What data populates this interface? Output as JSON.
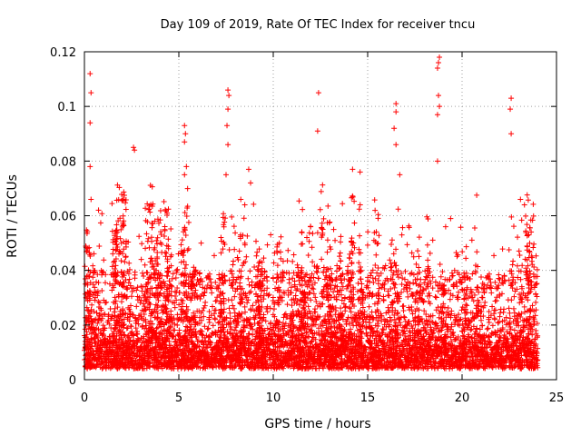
{
  "chart_data": {
    "type": "scatter",
    "title": "Day 109 of 2019, Rate Of TEC Index for receiver tncu",
    "xlabel": "GPS time / hours",
    "ylabel": "ROTI / TECUs",
    "xlim": [
      0,
      25
    ],
    "ylim": [
      0,
      0.12
    ],
    "x_ticks": [
      0,
      5,
      10,
      15,
      20,
      25
    ],
    "y_ticks": [
      0,
      0.02,
      0.04,
      0.06,
      0.08,
      0.1,
      0.12
    ],
    "x_tick_labels": [
      "0",
      "5",
      "10",
      "15",
      "20",
      "25"
    ],
    "y_tick_labels": [
      "0",
      "0.02",
      "0.04",
      "0.06",
      "0.08",
      "0.1",
      "0.12"
    ],
    "grid": true,
    "marker": "+",
    "series_color": "#ff0000",
    "density_profile": {
      "x_range": [
        0,
        24
      ],
      "baseline_band": [
        0.004,
        0.02
      ],
      "common_peak_range": [
        0.03,
        0.07
      ]
    },
    "highlight_points": [
      {
        "x": 0.3,
        "y": 0.112
      },
      {
        "x": 0.35,
        "y": 0.105
      },
      {
        "x": 0.3,
        "y": 0.094
      },
      {
        "x": 0.3,
        "y": 0.078
      },
      {
        "x": 0.35,
        "y": 0.066
      },
      {
        "x": 2.6,
        "y": 0.085
      },
      {
        "x": 2.65,
        "y": 0.084
      },
      {
        "x": 5.3,
        "y": 0.093
      },
      {
        "x": 5.35,
        "y": 0.09
      },
      {
        "x": 5.3,
        "y": 0.087
      },
      {
        "x": 5.4,
        "y": 0.078
      },
      {
        "x": 5.3,
        "y": 0.075
      },
      {
        "x": 7.6,
        "y": 0.106
      },
      {
        "x": 7.65,
        "y": 0.104
      },
      {
        "x": 7.6,
        "y": 0.099
      },
      {
        "x": 7.55,
        "y": 0.093
      },
      {
        "x": 7.6,
        "y": 0.086
      },
      {
        "x": 7.5,
        "y": 0.075
      },
      {
        "x": 8.7,
        "y": 0.077
      },
      {
        "x": 8.8,
        "y": 0.072
      },
      {
        "x": 12.4,
        "y": 0.105
      },
      {
        "x": 12.35,
        "y": 0.091
      },
      {
        "x": 14.2,
        "y": 0.077
      },
      {
        "x": 14.6,
        "y": 0.076
      },
      {
        "x": 16.5,
        "y": 0.101
      },
      {
        "x": 16.5,
        "y": 0.098
      },
      {
        "x": 16.4,
        "y": 0.092
      },
      {
        "x": 16.5,
        "y": 0.086
      },
      {
        "x": 16.7,
        "y": 0.075
      },
      {
        "x": 18.8,
        "y": 0.118
      },
      {
        "x": 18.75,
        "y": 0.116
      },
      {
        "x": 18.7,
        "y": 0.114
      },
      {
        "x": 18.75,
        "y": 0.104
      },
      {
        "x": 18.8,
        "y": 0.1
      },
      {
        "x": 18.7,
        "y": 0.097
      },
      {
        "x": 18.7,
        "y": 0.08
      },
      {
        "x": 22.6,
        "y": 0.103
      },
      {
        "x": 22.55,
        "y": 0.099
      },
      {
        "x": 22.6,
        "y": 0.09
      }
    ]
  }
}
